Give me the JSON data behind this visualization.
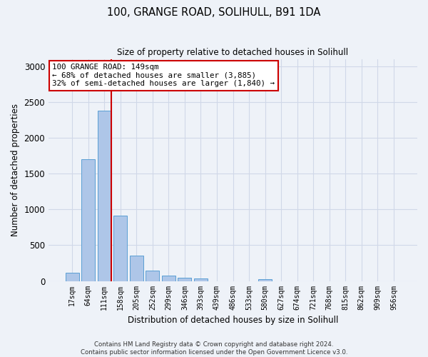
{
  "title1": "100, GRANGE ROAD, SOLIHULL, B91 1DA",
  "title2": "Size of property relative to detached houses in Solihull",
  "xlabel": "Distribution of detached houses by size in Solihull",
  "ylabel": "Number of detached properties",
  "bar_labels": [
    "17sqm",
    "64sqm",
    "111sqm",
    "158sqm",
    "205sqm",
    "252sqm",
    "299sqm",
    "346sqm",
    "393sqm",
    "439sqm",
    "486sqm",
    "533sqm",
    "580sqm",
    "627sqm",
    "674sqm",
    "721sqm",
    "768sqm",
    "815sqm",
    "862sqm",
    "909sqm",
    "956sqm"
  ],
  "bar_values": [
    120,
    1700,
    2380,
    910,
    350,
    145,
    80,
    50,
    35,
    0,
    0,
    0,
    30,
    0,
    0,
    0,
    0,
    0,
    0,
    0,
    0
  ],
  "bar_color": "#aec6e8",
  "bar_edge_color": "#5a9fd4",
  "vline_x": 2.425,
  "annotation_title": "100 GRANGE ROAD: 149sqm",
  "annotation_line1": "← 68% of detached houses are smaller (3,885)",
  "annotation_line2": "32% of semi-detached houses are larger (1,840) →",
  "annotation_box_color": "#ffffff",
  "annotation_box_edge": "#cc0000",
  "vline_color": "#cc0000",
  "grid_color": "#d0d8e8",
  "background_color": "#eef2f8",
  "ylim": [
    0,
    3100
  ],
  "yticks": [
    0,
    500,
    1000,
    1500,
    2000,
    2500,
    3000
  ],
  "footer1": "Contains HM Land Registry data © Crown copyright and database right 2024.",
  "footer2": "Contains public sector information licensed under the Open Government Licence v3.0."
}
